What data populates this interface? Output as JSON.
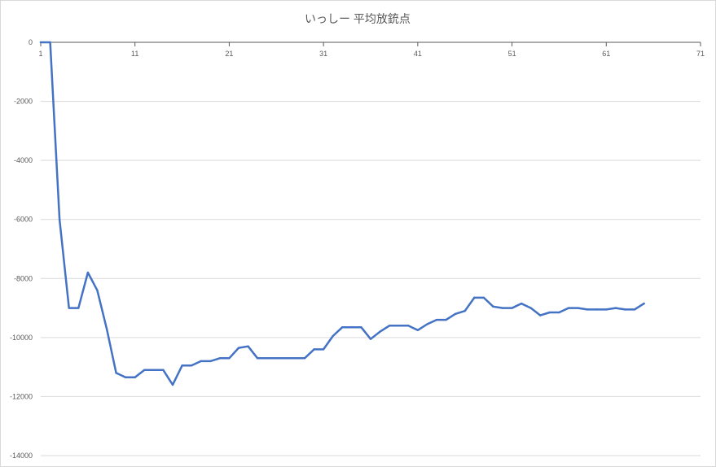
{
  "chart_data": {
    "type": "line",
    "title": "いっしー 平均放銃点",
    "xlabel": "",
    "ylabel": "",
    "xlim": [
      1,
      71
    ],
    "ylim": [
      -14000,
      0
    ],
    "x_ticks": [
      1,
      11,
      21,
      31,
      41,
      51,
      61,
      71
    ],
    "y_ticks": [
      0,
      -2000,
      -4000,
      -6000,
      -8000,
      -10000,
      -12000,
      -14000
    ],
    "x_tick_labels": [
      "1",
      "11",
      "21",
      "31",
      "41",
      "51",
      "61",
      "71"
    ],
    "y_tick_labels": [
      "0",
      "-2000",
      "-4000",
      "-6000",
      "-8000",
      "-10000",
      "-12000",
      "-14000"
    ],
    "grid": true,
    "legend": "none",
    "colors": {
      "series": "#4472c4",
      "grid": "#d9d9d9",
      "axis": "#595959",
      "text": "#595959"
    },
    "series": [
      {
        "x": [
          1,
          2,
          3,
          4,
          5,
          6,
          7,
          8,
          9,
          10,
          11,
          12,
          13,
          14,
          15,
          16,
          17,
          18,
          19,
          20,
          21,
          22,
          23,
          24,
          25,
          26,
          27,
          28,
          29,
          30,
          31,
          32,
          33,
          34,
          35,
          36,
          37,
          38,
          39,
          40,
          41,
          42,
          43,
          44,
          45,
          46,
          47,
          48,
          49,
          50,
          51,
          52,
          53,
          54,
          55,
          56,
          57,
          58,
          59,
          60,
          61,
          62,
          63,
          64,
          65
        ],
        "values": [
          0,
          0,
          -6000,
          -9000,
          -9000,
          -7800,
          -8400,
          -9700,
          -11200,
          -11350,
          -11350,
          -11100,
          -11100,
          -11100,
          -11600,
          -10950,
          -10950,
          -10800,
          -10800,
          -10700,
          -10700,
          -10350,
          -10300,
          -10700,
          -10700,
          -10700,
          -10700,
          -10700,
          -10700,
          -10400,
          -10400,
          -9950,
          -9650,
          -9650,
          -9650,
          -10050,
          -9800,
          -9600,
          -9600,
          -9600,
          -9750,
          -9550,
          -9400,
          -9400,
          -9200,
          -9100,
          -8650,
          -8650,
          -8950,
          -9000,
          -9000,
          -8850,
          -9000,
          -9250,
          -9150,
          -9150,
          -9000,
          -9000,
          -9050,
          -9050,
          -9050,
          -9000,
          -9050,
          -9050,
          -8850
        ]
      }
    ]
  }
}
